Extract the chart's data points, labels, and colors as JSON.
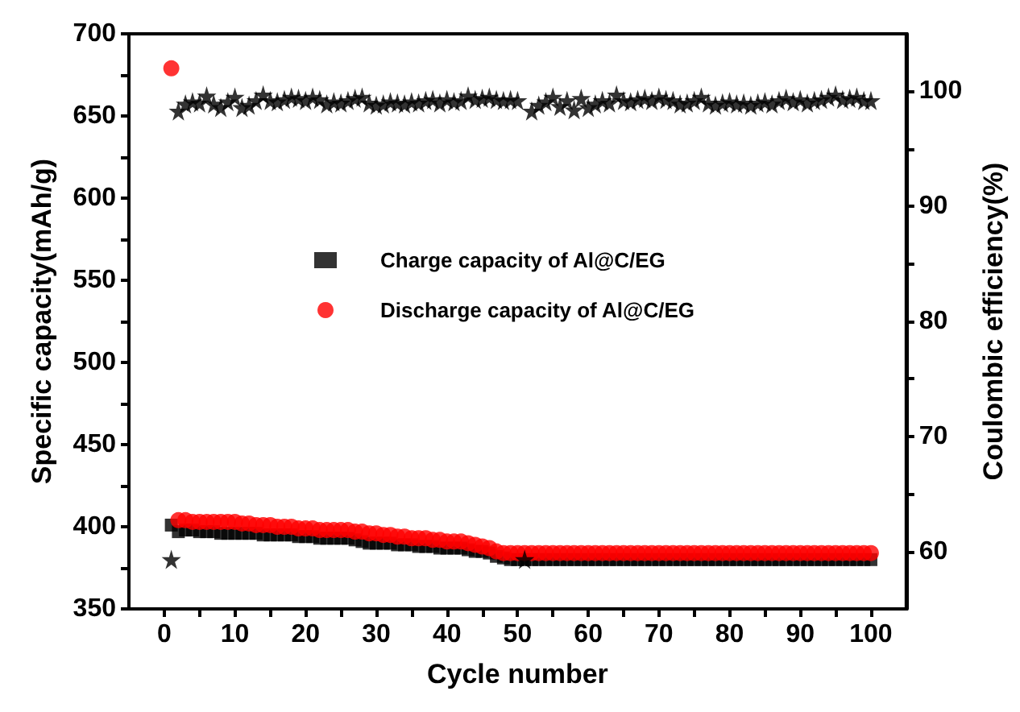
{
  "chart_data": {
    "type": "scatter",
    "xlabel": "Cycle number",
    "ylabel": "Specific capacity(mAh/g)",
    "y2label": "Coulombic efficiency(%)",
    "xlim": [
      -5,
      105
    ],
    "xticks": [
      0,
      {
        "value": 5,
        "label": null
      },
      10,
      {
        "value": 15,
        "label": null
      },
      20,
      {
        "value": 25,
        "label": null
      },
      30,
      {
        "value": 35,
        "label": null
      },
      40,
      {
        "value": 45,
        "label": null
      },
      50,
      {
        "value": 55,
        "label": null
      },
      60,
      {
        "value": 65,
        "label": null
      },
      70,
      {
        "value": 75,
        "label": null
      },
      80,
      {
        "value": 85,
        "label": null
      },
      90,
      {
        "value": 95,
        "label": null
      },
      100
    ],
    "ylim": [
      350,
      700
    ],
    "yticks": [
      350,
      {
        "value": 375,
        "label": null
      },
      400,
      {
        "value": 425,
        "label": null
      },
      450,
      {
        "value": 475,
        "label": null
      },
      500,
      {
        "value": 525,
        "label": null
      },
      550,
      {
        "value": 575,
        "label": null
      },
      600,
      {
        "value": 625,
        "label": null
      },
      650,
      {
        "value": 675,
        "label": null
      },
      700
    ],
    "y2lim": [
      55,
      105
    ],
    "y2ticks": [
      60,
      {
        "value": 65,
        "label": null
      },
      70,
      {
        "value": 75,
        "label": null
      },
      80,
      {
        "value": 85,
        "label": null
      },
      90,
      {
        "value": 95,
        "label": null
      },
      100
    ],
    "x": [
      1,
      2,
      3,
      4,
      5,
      6,
      7,
      8,
      9,
      10,
      11,
      12,
      13,
      14,
      15,
      16,
      17,
      18,
      19,
      20,
      21,
      22,
      23,
      24,
      25,
      26,
      27,
      28,
      29,
      30,
      31,
      32,
      33,
      34,
      35,
      36,
      37,
      38,
      39,
      40,
      41,
      42,
      43,
      44,
      45,
      46,
      47,
      48,
      49,
      50,
      51,
      52,
      53,
      54,
      55,
      56,
      57,
      58,
      59,
      60,
      61,
      62,
      63,
      64,
      65,
      66,
      67,
      68,
      69,
      70,
      71,
      72,
      73,
      74,
      75,
      76,
      77,
      78,
      79,
      80,
      81,
      82,
      83,
      84,
      85,
      86,
      87,
      88,
      89,
      90,
      91,
      92,
      93,
      94,
      95,
      96,
      97,
      98,
      99,
      100
    ],
    "legend": "center",
    "grid": false,
    "series": [
      {
        "name": "Charge capacity of Al@C/EG",
        "color": "#000000",
        "marker": "square",
        "values": [
          401,
          397,
          398,
          398,
          397,
          397,
          397,
          396,
          396,
          396,
          396,
          396,
          396,
          395,
          395,
          395,
          395,
          395,
          394,
          394,
          394,
          393,
          393,
          393,
          393,
          393,
          392,
          391,
          390,
          390,
          390,
          390,
          389,
          389,
          389,
          388,
          388,
          388,
          387,
          387,
          387,
          387,
          386,
          385,
          385,
          384,
          382,
          381,
          380,
          380,
          380,
          380,
          380,
          380,
          380,
          380,
          380,
          380,
          380,
          380,
          380,
          380,
          380,
          380,
          380,
          380,
          380,
          380,
          380,
          380,
          380,
          380,
          380,
          380,
          380,
          380,
          380,
          380,
          380,
          380,
          380,
          380,
          380,
          380,
          380,
          380,
          380,
          380,
          380,
          380,
          380,
          380,
          380,
          380,
          380,
          380,
          380,
          380,
          380,
          380
        ]
      },
      {
        "name": "Discharge capacity of Al@C/EG",
        "color": "#ff0000",
        "marker": "circle",
        "values": [
          679,
          404,
          404,
          403,
          403,
          403,
          403,
          403,
          403,
          403,
          402,
          402,
          401,
          401,
          401,
          400,
          400,
          400,
          399,
          399,
          399,
          398,
          398,
          398,
          398,
          398,
          397,
          397,
          396,
          396,
          395,
          395,
          394,
          394,
          393,
          393,
          393,
          392,
          392,
          391,
          391,
          391,
          390,
          389,
          388,
          387,
          385,
          384,
          384,
          384,
          384,
          384,
          384,
          384,
          384,
          384,
          384,
          384,
          384,
          384,
          384,
          384,
          384,
          384,
          384,
          384,
          384,
          384,
          384,
          384,
          384,
          384,
          384,
          384,
          384,
          384,
          384,
          384,
          384,
          384,
          384,
          384,
          384,
          384,
          384,
          384,
          384,
          384,
          384,
          384,
          384,
          384,
          384,
          384,
          384,
          384,
          384,
          384,
          384,
          384
        ]
      },
      {
        "color": "#000000",
        "marker": "star",
        "axis": "y2",
        "values": [
          59.3,
          98.3,
          98.9,
          99.1,
          99.0,
          99.6,
          98.9,
          98.6,
          99.1,
          99.5,
          98.6,
          98.8,
          99.2,
          99.7,
          99.2,
          99.1,
          99.3,
          99.5,
          99.4,
          99.2,
          99.5,
          99.3,
          98.9,
          99.1,
          99.0,
          99.2,
          99.4,
          99.5,
          99.0,
          98.8,
          98.9,
          99.1,
          99.0,
          98.9,
          99.1,
          99.0,
          99.2,
          99.3,
          99.0,
          99.3,
          99.1,
          99.2,
          99.6,
          99.3,
          99.4,
          99.5,
          99.3,
          99.2,
          99.3,
          99.2,
          59.3,
          98.3,
          98.8,
          99.1,
          99.5,
          98.7,
          99.2,
          98.4,
          99.4,
          98.6,
          98.9,
          99.2,
          99.0,
          99.7,
          99.2,
          99.1,
          99.3,
          99.4,
          99.2,
          99.5,
          99.3,
          99.2,
          98.9,
          99.0,
          99.2,
          99.5,
          99.0,
          98.8,
          99.0,
          99.1,
          98.9,
          99.0,
          98.8,
          99.0,
          99.1,
          98.9,
          99.2,
          99.4,
          99.1,
          99.3,
          99.0,
          99.2,
          99.3,
          99.5,
          99.7,
          99.3,
          99.4,
          99.5,
          99.2,
          99.2
        ]
      }
    ]
  }
}
